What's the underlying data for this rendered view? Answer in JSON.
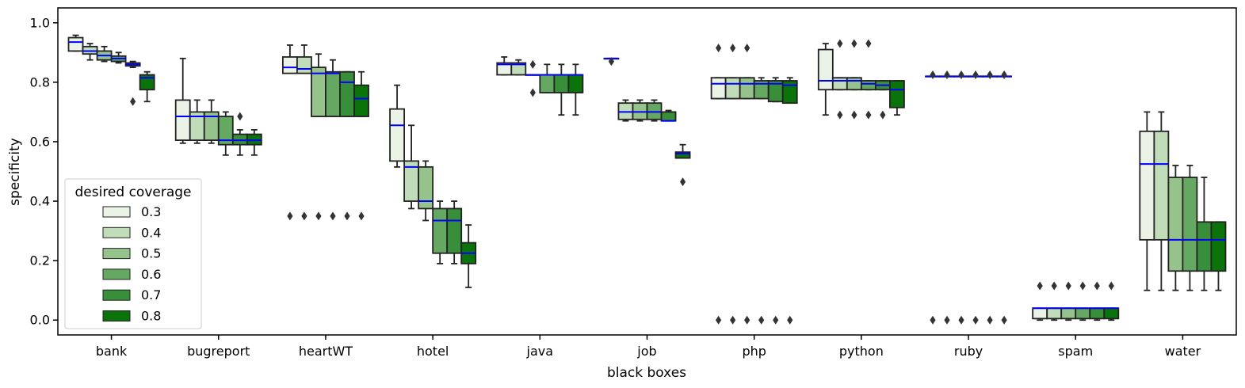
{
  "chart_data": {
    "type": "boxplot",
    "xlabel": "black boxes",
    "ylabel": "specificity",
    "ylim": [
      -0.05,
      1.05
    ],
    "yticks": [
      "0.0",
      "0.2",
      "0.4",
      "0.6",
      "0.8",
      "1.0"
    ],
    "categories": [
      "bank",
      "bugreport",
      "heartWT",
      "hotel",
      "java",
      "job",
      "php",
      "python",
      "ruby",
      "spam",
      "water"
    ],
    "median_color": "#0000ff",
    "legend": {
      "title": "desired coverage",
      "placement": "lower-left",
      "entries": [
        {
          "label": "0.3",
          "color": "#ebf3e7"
        },
        {
          "label": "0.4",
          "color": "#c0dcb9"
        },
        {
          "label": "0.5",
          "color": "#96c38c"
        },
        {
          "label": "0.6",
          "color": "#64a861"
        },
        {
          "label": "0.7",
          "color": "#398e3a"
        },
        {
          "label": "0.8",
          "color": "#0a730a"
        }
      ]
    },
    "groups": [
      {
        "category": "bank",
        "boxes": [
          {
            "q1": 0.905,
            "median": 0.935,
            "q3": 0.95,
            "lower": 0.905,
            "upper": 0.958,
            "outliers": []
          },
          {
            "q1": 0.895,
            "median": 0.905,
            "q3": 0.92,
            "lower": 0.875,
            "upper": 0.93,
            "outliers": []
          },
          {
            "q1": 0.875,
            "median": 0.89,
            "q3": 0.905,
            "lower": 0.87,
            "upper": 0.92,
            "outliers": []
          },
          {
            "q1": 0.87,
            "median": 0.88,
            "q3": 0.888,
            "lower": 0.865,
            "upper": 0.9,
            "outliers": []
          },
          {
            "q1": 0.855,
            "median": 0.86,
            "q3": 0.865,
            "lower": 0.85,
            "upper": 0.87,
            "outliers": [
              0.735
            ]
          },
          {
            "q1": 0.775,
            "median": 0.815,
            "q3": 0.825,
            "lower": 0.735,
            "upper": 0.835,
            "outliers": []
          }
        ]
      },
      {
        "category": "bugreport",
        "boxes": [
          {
            "q1": 0.605,
            "median": 0.685,
            "q3": 0.74,
            "lower": 0.595,
            "upper": 0.88,
            "outliers": []
          },
          {
            "q1": 0.605,
            "median": 0.685,
            "q3": 0.7,
            "lower": 0.595,
            "upper": 0.74,
            "outliers": []
          },
          {
            "q1": 0.605,
            "median": 0.685,
            "q3": 0.7,
            "lower": 0.595,
            "upper": 0.74,
            "outliers": []
          },
          {
            "q1": 0.59,
            "median": 0.605,
            "q3": 0.685,
            "lower": 0.555,
            "upper": 0.7,
            "outliers": []
          },
          {
            "q1": 0.59,
            "median": 0.605,
            "q3": 0.625,
            "lower": 0.555,
            "upper": 0.64,
            "outliers": [
              0.685
            ]
          },
          {
            "q1": 0.59,
            "median": 0.605,
            "q3": 0.625,
            "lower": 0.555,
            "upper": 0.64,
            "outliers": []
          }
        ]
      },
      {
        "category": "heartWT",
        "boxes": [
          {
            "q1": 0.83,
            "median": 0.85,
            "q3": 0.885,
            "lower": 0.83,
            "upper": 0.925,
            "outliers": [
              0.35
            ]
          },
          {
            "q1": 0.83,
            "median": 0.845,
            "q3": 0.885,
            "lower": 0.83,
            "upper": 0.925,
            "outliers": [
              0.35
            ]
          },
          {
            "q1": 0.685,
            "median": 0.83,
            "q3": 0.85,
            "lower": 0.685,
            "upper": 0.895,
            "outliers": [
              0.35
            ]
          },
          {
            "q1": 0.685,
            "median": 0.83,
            "q3": 0.835,
            "lower": 0.685,
            "upper": 0.875,
            "outliers": [
              0.35
            ]
          },
          {
            "q1": 0.685,
            "median": 0.8,
            "q3": 0.835,
            "lower": 0.685,
            "upper": 0.835,
            "outliers": [
              0.35
            ]
          },
          {
            "q1": 0.685,
            "median": 0.745,
            "q3": 0.79,
            "lower": 0.685,
            "upper": 0.835,
            "outliers": [
              0.35
            ]
          }
        ]
      },
      {
        "category": "hotel",
        "boxes": [
          {
            "q1": 0.535,
            "median": 0.655,
            "q3": 0.71,
            "lower": 0.515,
            "upper": 0.79,
            "outliers": []
          },
          {
            "q1": 0.4,
            "median": 0.515,
            "q3": 0.535,
            "lower": 0.375,
            "upper": 0.655,
            "outliers": []
          },
          {
            "q1": 0.375,
            "median": 0.4,
            "q3": 0.515,
            "lower": 0.335,
            "upper": 0.535,
            "outliers": []
          },
          {
            "q1": 0.225,
            "median": 0.335,
            "q3": 0.375,
            "lower": 0.19,
            "upper": 0.4,
            "outliers": []
          },
          {
            "q1": 0.225,
            "median": 0.335,
            "q3": 0.375,
            "lower": 0.19,
            "upper": 0.4,
            "outliers": []
          },
          {
            "q1": 0.19,
            "median": 0.225,
            "q3": 0.26,
            "lower": 0.11,
            "upper": 0.32,
            "outliers": []
          }
        ]
      },
      {
        "category": "java",
        "boxes": [
          {
            "q1": 0.825,
            "median": 0.86,
            "q3": 0.865,
            "lower": 0.825,
            "upper": 0.885,
            "outliers": []
          },
          {
            "q1": 0.825,
            "median": 0.86,
            "q3": 0.865,
            "lower": 0.825,
            "upper": 0.875,
            "outliers": []
          },
          {
            "q1": 0.825,
            "median": 0.825,
            "q3": 0.825,
            "lower": 0.825,
            "upper": 0.825,
            "outliers": [
              0.765,
              0.86
            ]
          },
          {
            "q1": 0.765,
            "median": 0.825,
            "q3": 0.825,
            "lower": 0.765,
            "upper": 0.86,
            "outliers": []
          },
          {
            "q1": 0.765,
            "median": 0.825,
            "q3": 0.825,
            "lower": 0.69,
            "upper": 0.86,
            "outliers": []
          },
          {
            "q1": 0.765,
            "median": 0.825,
            "q3": 0.825,
            "lower": 0.69,
            "upper": 0.86,
            "outliers": []
          }
        ]
      },
      {
        "category": "job",
        "boxes": [
          {
            "q1": 0.88,
            "median": 0.88,
            "q3": 0.88,
            "lower": 0.88,
            "upper": 0.88,
            "outliers": [
              0.87
            ]
          },
          {
            "q1": 0.675,
            "median": 0.7,
            "q3": 0.73,
            "lower": 0.67,
            "upper": 0.74,
            "outliers": []
          },
          {
            "q1": 0.675,
            "median": 0.7,
            "q3": 0.73,
            "lower": 0.67,
            "upper": 0.74,
            "outliers": []
          },
          {
            "q1": 0.675,
            "median": 0.7,
            "q3": 0.73,
            "lower": 0.67,
            "upper": 0.74,
            "outliers": []
          },
          {
            "q1": 0.67,
            "median": 0.67,
            "q3": 0.7,
            "lower": 0.67,
            "upper": 0.705,
            "outliers": []
          },
          {
            "q1": 0.545,
            "median": 0.56,
            "q3": 0.565,
            "lower": 0.545,
            "upper": 0.59,
            "outliers": [
              0.465
            ]
          }
        ]
      },
      {
        "category": "php",
        "boxes": [
          {
            "q1": 0.745,
            "median": 0.795,
            "q3": 0.815,
            "lower": 0.745,
            "upper": 0.815,
            "outliers": [
              0.0,
              0.915
            ]
          },
          {
            "q1": 0.745,
            "median": 0.795,
            "q3": 0.815,
            "lower": 0.745,
            "upper": 0.815,
            "outliers": [
              0.0,
              0.915
            ]
          },
          {
            "q1": 0.745,
            "median": 0.795,
            "q3": 0.815,
            "lower": 0.745,
            "upper": 0.815,
            "outliers": [
              0.0,
              0.915
            ]
          },
          {
            "q1": 0.745,
            "median": 0.795,
            "q3": 0.805,
            "lower": 0.745,
            "upper": 0.815,
            "outliers": [
              0.0
            ]
          },
          {
            "q1": 0.735,
            "median": 0.795,
            "q3": 0.805,
            "lower": 0.735,
            "upper": 0.815,
            "outliers": [
              0.0
            ]
          },
          {
            "q1": 0.73,
            "median": 0.79,
            "q3": 0.805,
            "lower": 0.73,
            "upper": 0.815,
            "outliers": [
              0.0
            ]
          }
        ]
      },
      {
        "category": "python",
        "boxes": [
          {
            "q1": 0.775,
            "median": 0.805,
            "q3": 0.91,
            "lower": 0.69,
            "upper": 0.93,
            "outliers": []
          },
          {
            "q1": 0.775,
            "median": 0.805,
            "q3": 0.815,
            "lower": 0.775,
            "upper": 0.815,
            "outliers": [
              0.69,
              0.93
            ]
          },
          {
            "q1": 0.775,
            "median": 0.805,
            "q3": 0.815,
            "lower": 0.775,
            "upper": 0.815,
            "outliers": [
              0.69,
              0.93
            ]
          },
          {
            "q1": 0.775,
            "median": 0.795,
            "q3": 0.805,
            "lower": 0.775,
            "upper": 0.805,
            "outliers": [
              0.69,
              0.93
            ]
          },
          {
            "q1": 0.775,
            "median": 0.79,
            "q3": 0.805,
            "lower": 0.775,
            "upper": 0.805,
            "outliers": [
              0.69
            ]
          },
          {
            "q1": 0.715,
            "median": 0.775,
            "q3": 0.805,
            "lower": 0.69,
            "upper": 0.805,
            "outliers": []
          }
        ]
      },
      {
        "category": "ruby",
        "boxes": [
          {
            "q1": 0.82,
            "median": 0.82,
            "q3": 0.82,
            "lower": 0.82,
            "upper": 0.82,
            "outliers": [
              0.0,
              0.825
            ]
          },
          {
            "q1": 0.82,
            "median": 0.82,
            "q3": 0.82,
            "lower": 0.82,
            "upper": 0.82,
            "outliers": [
              0.0,
              0.825
            ]
          },
          {
            "q1": 0.82,
            "median": 0.82,
            "q3": 0.82,
            "lower": 0.82,
            "upper": 0.82,
            "outliers": [
              0.0,
              0.825
            ]
          },
          {
            "q1": 0.82,
            "median": 0.82,
            "q3": 0.82,
            "lower": 0.82,
            "upper": 0.82,
            "outliers": [
              0.0,
              0.825
            ]
          },
          {
            "q1": 0.82,
            "median": 0.82,
            "q3": 0.82,
            "lower": 0.82,
            "upper": 0.82,
            "outliers": [
              0.0,
              0.825
            ]
          },
          {
            "q1": 0.82,
            "median": 0.82,
            "q3": 0.82,
            "lower": 0.82,
            "upper": 0.82,
            "outliers": [
              0.0,
              0.825
            ]
          }
        ]
      },
      {
        "category": "spam",
        "boxes": [
          {
            "q1": 0.005,
            "median": 0.04,
            "q3": 0.04,
            "lower": 0.0,
            "upper": 0.04,
            "outliers": [
              0.115
            ]
          },
          {
            "q1": 0.005,
            "median": 0.04,
            "q3": 0.04,
            "lower": 0.0,
            "upper": 0.04,
            "outliers": [
              0.115
            ]
          },
          {
            "q1": 0.005,
            "median": 0.04,
            "q3": 0.04,
            "lower": 0.0,
            "upper": 0.04,
            "outliers": [
              0.115
            ]
          },
          {
            "q1": 0.005,
            "median": 0.04,
            "q3": 0.04,
            "lower": 0.0,
            "upper": 0.04,
            "outliers": [
              0.115
            ]
          },
          {
            "q1": 0.005,
            "median": 0.04,
            "q3": 0.04,
            "lower": 0.0,
            "upper": 0.04,
            "outliers": [
              0.115
            ]
          },
          {
            "q1": 0.005,
            "median": 0.04,
            "q3": 0.04,
            "lower": 0.0,
            "upper": 0.04,
            "outliers": [
              0.115
            ]
          }
        ]
      },
      {
        "category": "water",
        "boxes": [
          {
            "q1": 0.27,
            "median": 0.525,
            "q3": 0.635,
            "lower": 0.1,
            "upper": 0.7,
            "outliers": []
          },
          {
            "q1": 0.27,
            "median": 0.525,
            "q3": 0.635,
            "lower": 0.1,
            "upper": 0.7,
            "outliers": []
          },
          {
            "q1": 0.165,
            "median": 0.27,
            "q3": 0.48,
            "lower": 0.1,
            "upper": 0.52,
            "outliers": []
          },
          {
            "q1": 0.165,
            "median": 0.27,
            "q3": 0.48,
            "lower": 0.1,
            "upper": 0.52,
            "outliers": []
          },
          {
            "q1": 0.165,
            "median": 0.27,
            "q3": 0.33,
            "lower": 0.1,
            "upper": 0.48,
            "outliers": []
          },
          {
            "q1": 0.165,
            "median": 0.27,
            "q3": 0.33,
            "lower": 0.1,
            "upper": 0.33,
            "outliers": []
          }
        ]
      }
    ]
  }
}
